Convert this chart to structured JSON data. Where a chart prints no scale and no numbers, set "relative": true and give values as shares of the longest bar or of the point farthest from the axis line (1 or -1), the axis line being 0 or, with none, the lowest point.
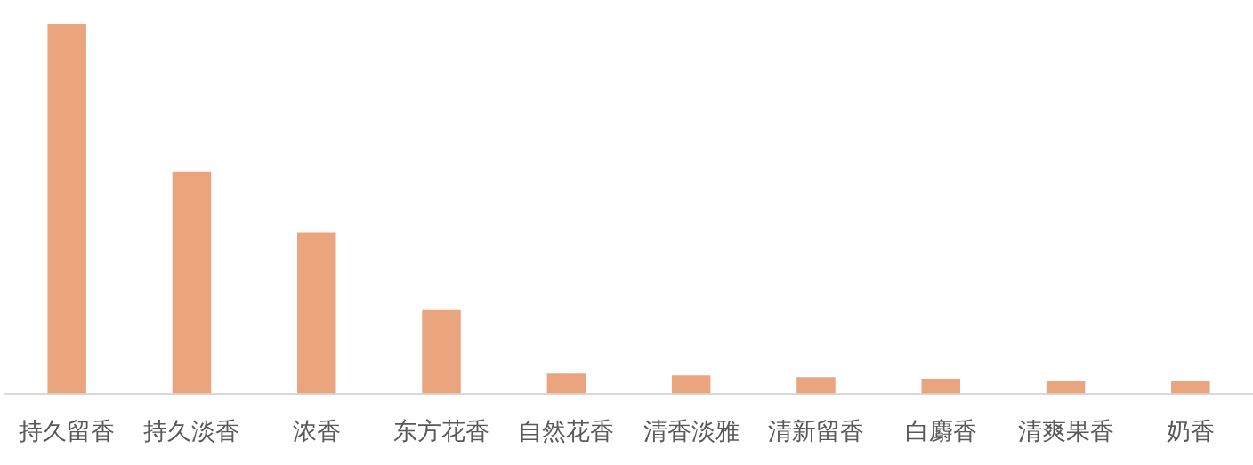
{
  "chart_data": {
    "type": "bar",
    "relative": true,
    "categories": [
      "持久留香",
      "持久淡香",
      "浓香",
      "东方花香",
      "自然花香",
      "清香淡雅",
      "清新留香",
      "白麝香",
      "清爽果香",
      "奶香"
    ],
    "values": [
      1,
      0.601,
      0.436,
      0.226,
      0.054,
      0.049,
      0.044,
      0.04,
      0.033,
      0.033
    ],
    "color": "#eaa47e"
  }
}
